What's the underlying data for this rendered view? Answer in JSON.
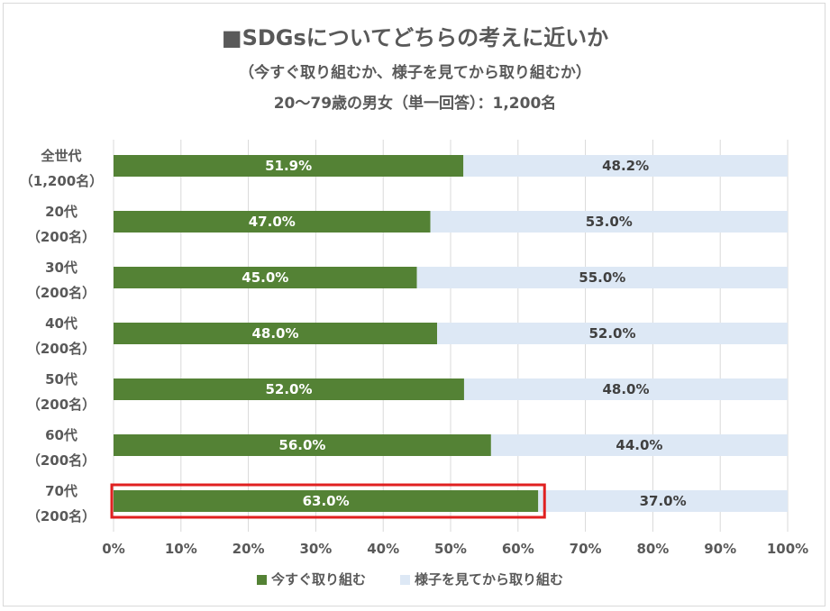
{
  "chart_data": {
    "type": "bar",
    "orientation": "horizontal",
    "stacked": "percent",
    "title": "■SDGsについてどちらの考えに近いか",
    "subtitle": "（今すぐ取り組むか、様子を見てから取り組むか）",
    "note": "20〜79歳の男女（単一回答）：1,200名",
    "categories": [
      {
        "line1": "全世代",
        "line2": "（1,200名）"
      },
      {
        "line1": "20代",
        "line2": "（200名）"
      },
      {
        "line1": "30代",
        "line2": "（200名）"
      },
      {
        "line1": "40代",
        "line2": "（200名）"
      },
      {
        "line1": "50代",
        "line2": "（200名）"
      },
      {
        "line1": "60代",
        "line2": "（200名）"
      },
      {
        "line1": "70代",
        "line2": "（200名）"
      }
    ],
    "series": [
      {
        "name": "今すぐ取り組む",
        "color": "#548235",
        "values": [
          51.9,
          47.0,
          45.0,
          48.0,
          52.0,
          56.0,
          63.0
        ],
        "labels": [
          "51.9%",
          "47.0%",
          "45.0%",
          "48.0%",
          "52.0%",
          "56.0%",
          "63.0%"
        ]
      },
      {
        "name": "様子を見てから取り組む",
        "color": "#dde8f5",
        "values": [
          48.2,
          53.0,
          55.0,
          52.0,
          48.0,
          44.0,
          37.0
        ],
        "labels": [
          "48.2%",
          "53.0%",
          "55.0%",
          "52.0%",
          "48.0%",
          "44.0%",
          "37.0%"
        ]
      }
    ],
    "xticks": [
      "0%",
      "10%",
      "20%",
      "30%",
      "40%",
      "50%",
      "60%",
      "70%",
      "80%",
      "90%",
      "100%"
    ],
    "xlim": [
      0,
      100
    ],
    "highlight_index": 6,
    "highlight_color": "#e02020",
    "grid": true,
    "legend": "bottom"
  }
}
